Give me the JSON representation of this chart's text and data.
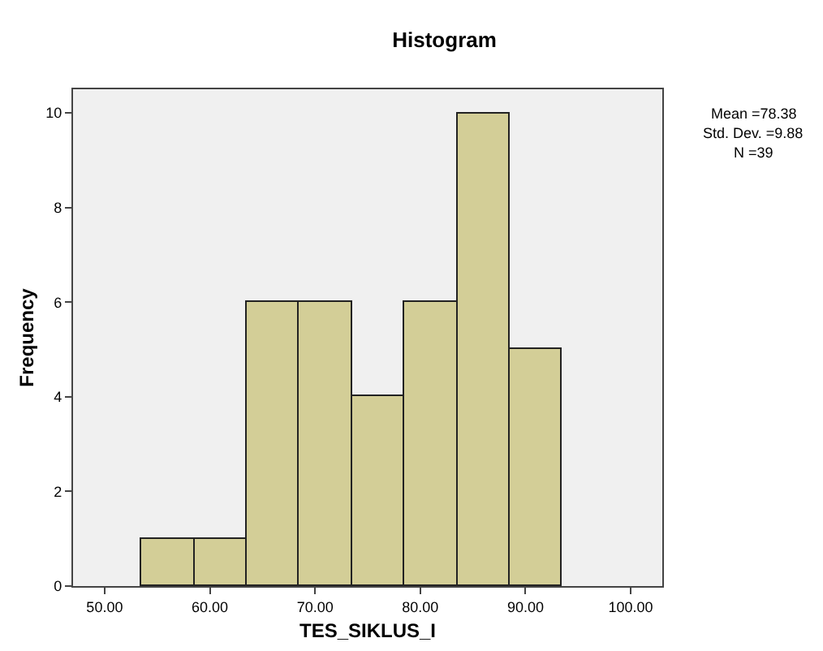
{
  "chart_data": {
    "type": "histogram",
    "title": "Histogram",
    "xlabel": "TES_SIKLUS_I",
    "ylabel": "Frequency",
    "bins": [
      53.5,
      58.5,
      63.5,
      68.5,
      73.5,
      78.5,
      83.5,
      88.5,
      93.5
    ],
    "values": [
      1,
      1,
      6,
      6,
      4,
      6,
      10,
      5
    ],
    "color": "#d3ce97",
    "xlim": [
      47,
      103
    ],
    "xticks": [
      {
        "value": 50,
        "label": "50.00"
      },
      {
        "value": 60,
        "label": "60.00"
      },
      {
        "value": 70,
        "label": "70.00"
      },
      {
        "value": 80,
        "label": "80.00"
      },
      {
        "value": 90,
        "label": "90.00"
      },
      {
        "value": 100,
        "label": "100.00"
      }
    ],
    "ylim": [
      0,
      10.5
    ],
    "yticks": [
      0,
      2,
      4,
      6,
      8,
      10
    ],
    "grid": false,
    "annotations": [
      "Mean =78.38",
      "Std. Dev. =9.88",
      "N =39"
    ]
  }
}
